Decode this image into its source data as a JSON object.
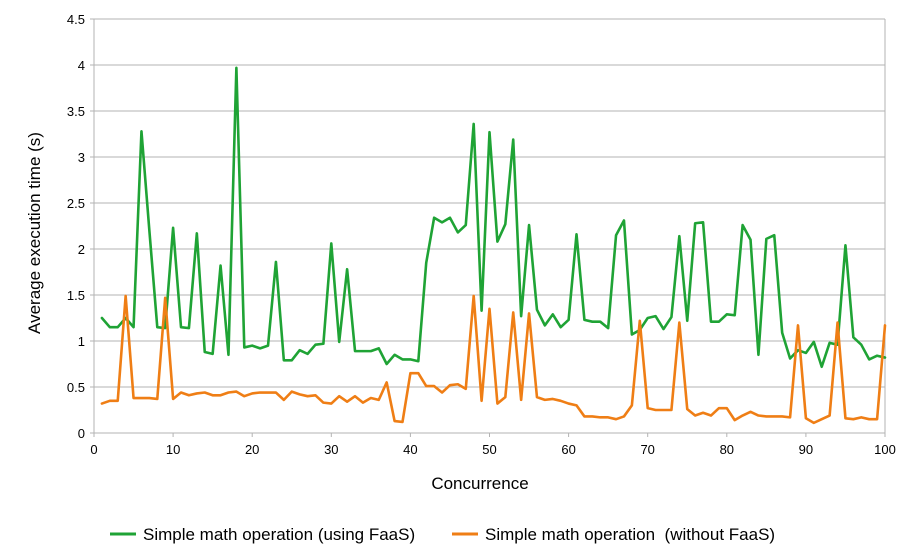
{
  "chart_data": {
    "type": "line",
    "title": "",
    "xlabel": "Concurrence",
    "ylabel": "Average execution time (s)",
    "xlim": [
      0,
      100
    ],
    "ylim": [
      0,
      4.5
    ],
    "xticks": [
      "0",
      "10",
      "20",
      "30",
      "40",
      "50",
      "60",
      "70",
      "80",
      "90",
      "100"
    ],
    "yticks": [
      "0",
      "0.5",
      "1",
      "1.5",
      "2",
      "2.5",
      "3",
      "3.5",
      "4",
      "4.5"
    ],
    "grid": true,
    "legend_position": "bottom",
    "x": [
      1,
      2,
      3,
      4,
      5,
      6,
      7,
      8,
      9,
      10,
      11,
      12,
      13,
      14,
      15,
      16,
      17,
      18,
      19,
      20,
      21,
      22,
      23,
      24,
      25,
      26,
      27,
      28,
      29,
      30,
      31,
      32,
      33,
      34,
      35,
      36,
      37,
      38,
      39,
      40,
      41,
      42,
      43,
      44,
      45,
      46,
      47,
      48,
      49,
      50,
      51,
      52,
      53,
      54,
      55,
      56,
      57,
      58,
      59,
      60,
      61,
      62,
      63,
      64,
      65,
      66,
      67,
      68,
      69,
      70,
      71,
      72,
      73,
      74,
      75,
      76,
      77,
      78,
      79,
      80,
      81,
      82,
      83,
      84,
      85,
      86,
      87,
      88,
      89,
      90,
      91,
      92,
      93,
      94,
      95,
      96,
      97,
      98,
      99,
      100
    ],
    "series": [
      {
        "name": "Simple math operation (using FaaS)",
        "color": "#1fa335",
        "values": [
          1.25,
          1.15,
          1.15,
          1.25,
          1.15,
          3.28,
          2.2,
          1.15,
          1.14,
          2.23,
          1.15,
          1.14,
          2.17,
          0.88,
          0.86,
          1.82,
          0.85,
          3.97,
          0.93,
          0.95,
          0.92,
          0.95,
          1.86,
          0.79,
          0.79,
          0.9,
          0.86,
          0.96,
          0.97,
          2.06,
          0.99,
          1.78,
          0.89,
          0.89,
          0.89,
          0.92,
          0.75,
          0.85,
          0.8,
          0.8,
          0.78,
          1.85,
          2.34,
          2.29,
          2.34,
          2.18,
          2.26,
          3.36,
          1.33,
          3.27,
          2.08,
          2.27,
          3.19,
          1.27,
          2.26,
          1.34,
          1.17,
          1.29,
          1.15,
          1.23,
          2.16,
          1.23,
          1.21,
          1.21,
          1.14,
          2.15,
          2.31,
          1.07,
          1.12,
          1.25,
          1.27,
          1.13,
          1.26,
          2.14,
          1.22,
          2.28,
          2.29,
          1.21,
          1.21,
          1.29,
          1.28,
          2.26,
          2.1,
          0.85,
          2.11,
          2.15,
          1.09,
          0.81,
          0.9,
          0.87,
          0.99,
          0.72,
          0.98,
          0.96,
          2.04,
          1.04,
          0.96,
          0.8,
          0.84,
          0.82
        ]
      },
      {
        "name": "Simple math operation  (without FaaS)",
        "color": "#ef7e15",
        "values": [
          0.32,
          0.35,
          0.35,
          1.49,
          0.38,
          0.38,
          0.38,
          0.37,
          1.47,
          0.37,
          0.44,
          0.41,
          0.43,
          0.44,
          0.41,
          0.41,
          0.44,
          0.45,
          0.4,
          0.43,
          0.44,
          0.44,
          0.44,
          0.36,
          0.45,
          0.42,
          0.4,
          0.41,
          0.33,
          0.32,
          0.4,
          0.34,
          0.4,
          0.33,
          0.38,
          0.36,
          0.55,
          0.13,
          0.12,
          0.65,
          0.65,
          0.51,
          0.51,
          0.44,
          0.52,
          0.53,
          0.48,
          1.49,
          0.35,
          1.35,
          0.32,
          0.39,
          1.31,
          0.36,
          1.3,
          0.39,
          0.36,
          0.37,
          0.35,
          0.32,
          0.3,
          0.18,
          0.18,
          0.17,
          0.17,
          0.15,
          0.18,
          0.3,
          1.22,
          0.27,
          0.25,
          0.25,
          0.25,
          1.2,
          0.26,
          0.19,
          0.22,
          0.19,
          0.27,
          0.27,
          0.14,
          0.19,
          0.23,
          0.19,
          0.18,
          0.18,
          0.18,
          0.17,
          1.17,
          0.16,
          0.11,
          0.15,
          0.19,
          1.2,
          0.16,
          0.15,
          0.17,
          0.15,
          0.15,
          1.17
        ]
      }
    ]
  }
}
